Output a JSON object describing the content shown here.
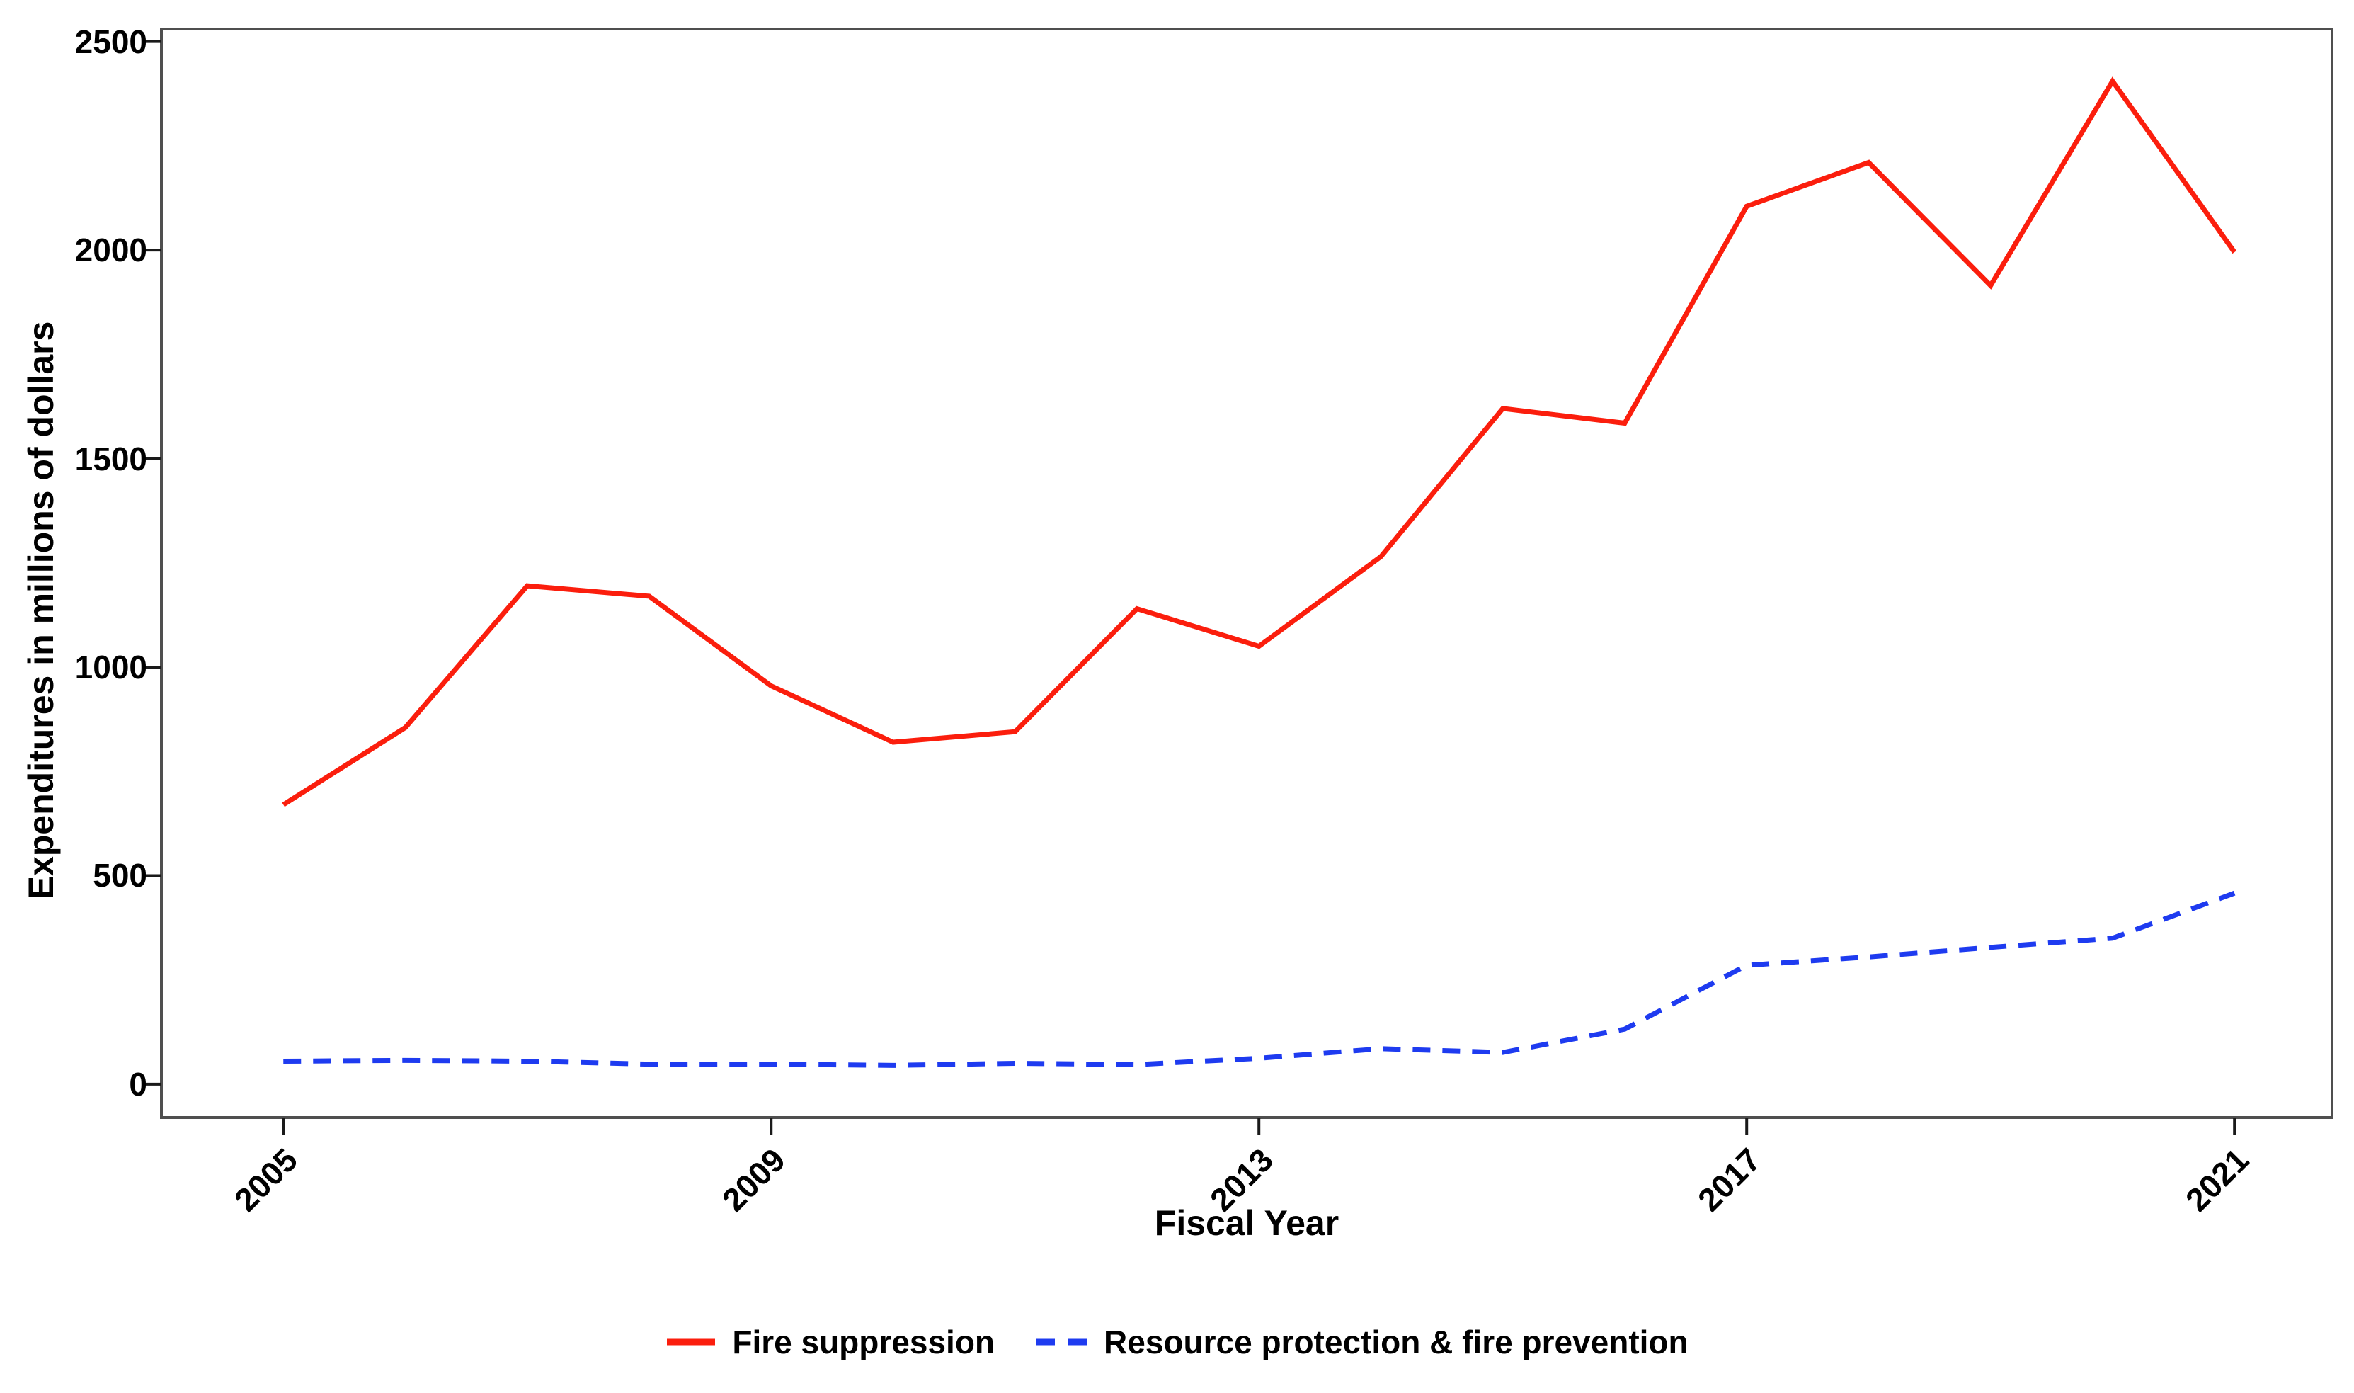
{
  "chart_data": {
    "type": "line",
    "title": "",
    "xlabel": "Fiscal Year",
    "ylabel": "Expenditures in millions of dollars",
    "x": [
      2005,
      2006,
      2007,
      2008,
      2009,
      2010,
      2011,
      2012,
      2013,
      2014,
      2015,
      2016,
      2017,
      2018,
      2019,
      2020,
      2021
    ],
    "series": [
      {
        "name": "Fire suppression",
        "style": "solid",
        "color": "#fb1e0d",
        "values": [
          670,
          855,
          1195,
          1170,
          955,
          820,
          845,
          1140,
          1050,
          1265,
          1620,
          1585,
          2105,
          2210,
          1915,
          2405,
          1995
        ]
      },
      {
        "name": "Resource protection & fire prevention",
        "style": "dashed",
        "color": "#1e3bf0",
        "values": [
          55,
          57,
          55,
          48,
          48,
          45,
          50,
          47,
          62,
          85,
          76,
          132,
          285,
          305,
          328,
          350,
          458
        ]
      }
    ],
    "xlim": [
      2004.0,
      2021.8
    ],
    "ylim": [
      -80,
      2530
    ],
    "x_ticks": [
      2005,
      2009,
      2013,
      2017,
      2021
    ],
    "y_ticks": [
      0,
      500,
      1000,
      1500,
      2000,
      2500
    ],
    "grid": false,
    "legend_position": "bottom",
    "panel_border_color": "#4f4f4f",
    "tick_color": "#1a1a1a",
    "text_color": "#000000"
  },
  "axes": {
    "x_title": "Fiscal Year",
    "y_title": "Expenditures in millions of dollars"
  },
  "legend": {
    "item1": "Fire suppression",
    "item2": "Resource protection & fire prevention"
  }
}
